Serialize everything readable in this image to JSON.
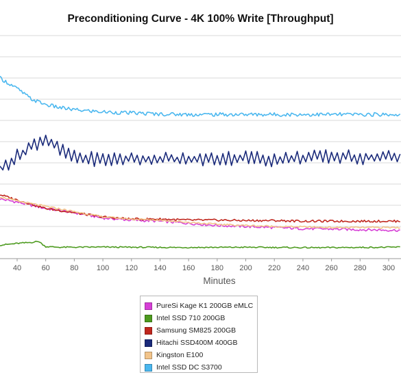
{
  "chart_data": {
    "type": "line",
    "title": "Preconditioning Curve - 4K 100% Write [Throughput]",
    "xlabel": "Minutes",
    "ylabel": "",
    "x_ticks": [
      40,
      60,
      80,
      100,
      120,
      140,
      160,
      180,
      200,
      220,
      240,
      260,
      280,
      300
    ],
    "xlim": [
      28,
      308
    ],
    "ylim": [
      0,
      11
    ],
    "y_gridlines": [
      1,
      2,
      3,
      4,
      5,
      6,
      7,
      8,
      9,
      10
    ],
    "grid": true,
    "legend_position": "bottom-center",
    "series": [
      {
        "name": "PureSi Kage K1 200GB eMLC",
        "color": "#d63fd6",
        "x": [
          28,
          40,
          60,
          80,
          100,
          120,
          140,
          160,
          180,
          200,
          220,
          240,
          260,
          280,
          300,
          308
        ],
        "y": [
          2.3,
          2.15,
          1.85,
          1.65,
          1.4,
          1.3,
          1.25,
          1.15,
          1.05,
          1.0,
          0.95,
          0.9,
          0.88,
          0.85,
          0.83,
          0.82
        ]
      },
      {
        "name": "Intel SSD 710 200GB",
        "color": "#4c9a1e",
        "x": [
          28,
          40,
          50,
          55,
          60,
          70,
          100,
          150,
          200,
          250,
          300,
          308
        ],
        "y": [
          0.12,
          0.2,
          0.25,
          0.3,
          0.05,
          0.02,
          0.03,
          0.01,
          0.02,
          0.0,
          0.02,
          0.03
        ]
      },
      {
        "name": "Samsung SM825 200GB",
        "color": "#c0271e",
        "x": [
          28,
          40,
          60,
          80,
          100,
          120,
          140,
          160,
          180,
          200,
          220,
          240,
          260,
          280,
          300,
          308
        ],
        "y": [
          2.5,
          2.25,
          1.85,
          1.65,
          1.45,
          1.35,
          1.35,
          1.3,
          1.3,
          1.28,
          1.28,
          1.25,
          1.25,
          1.25,
          1.25,
          1.25
        ]
      },
      {
        "name": "Hitachi SSD400M 400GB",
        "color": "#1a2a7a",
        "x": [
          28,
          40,
          50,
          60,
          70,
          80,
          100,
          120,
          140,
          160,
          180,
          200,
          220,
          240,
          260,
          280,
          300,
          308
        ],
        "y": [
          3.7,
          4.3,
          4.8,
          5.15,
          4.6,
          4.25,
          4.15,
          4.2,
          4.2,
          4.15,
          4.2,
          4.25,
          4.15,
          4.25,
          4.3,
          4.25,
          4.3,
          4.2
        ]
      },
      {
        "name": "Kingston E100",
        "color": "#f2c48a",
        "x": [
          28,
          40,
          60,
          80,
          100,
          120,
          140,
          160,
          180,
          200,
          220,
          240,
          260,
          280,
          300,
          308
        ],
        "y": [
          2.4,
          2.2,
          1.95,
          1.7,
          1.45,
          1.35,
          1.3,
          1.2,
          1.1,
          1.05,
          1.0,
          0.98,
          0.95,
          0.95,
          0.95,
          0.95
        ]
      },
      {
        "name": "Intel SSD DC S3700",
        "color": "#4ab7ef",
        "x": [
          28,
          40,
          50,
          60,
          70,
          80,
          100,
          120,
          140,
          160,
          180,
          200,
          220,
          240,
          260,
          280,
          300,
          308
        ],
        "y": [
          8.0,
          7.5,
          7.0,
          6.75,
          6.6,
          6.5,
          6.4,
          6.35,
          6.3,
          6.28,
          6.28,
          6.28,
          6.28,
          6.28,
          6.28,
          6.28,
          6.28,
          6.28
        ]
      }
    ]
  },
  "colors": {
    "grid": "#d9d9d9",
    "axis": "#999999",
    "tick_text": "#555555"
  }
}
